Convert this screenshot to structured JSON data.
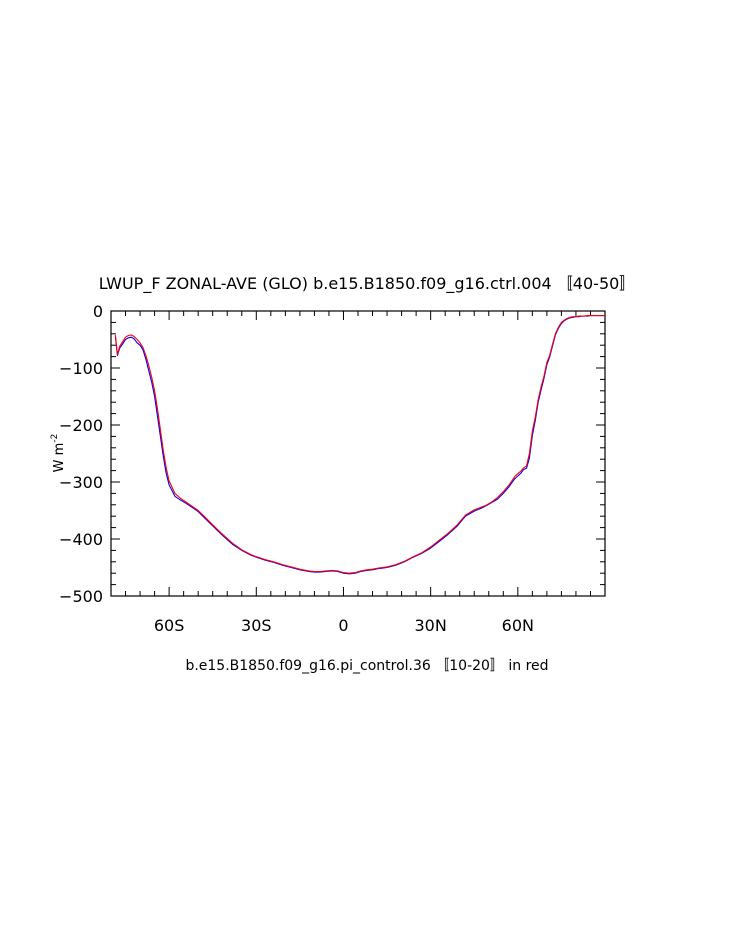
{
  "chart_data": {
    "type": "line",
    "title": "LWUP_F ZONAL-AVE (GLO) b.e15.B1850.f09_g16.ctrl.004 〚40-50〛",
    "ylabel_main": "W m",
    "ylabel_sup": "-2",
    "xlabel": "b.e15.B1850.f09_g16.pi_control.36 〚10-20〛 in red",
    "xlim": [
      -80,
      90
    ],
    "ylim": [
      -500,
      0
    ],
    "x_ticks": [
      {
        "value": -60,
        "label": "60S"
      },
      {
        "value": -30,
        "label": "30S"
      },
      {
        "value": 0,
        "label": "0"
      },
      {
        "value": 30,
        "label": "30N"
      },
      {
        "value": 60,
        "label": "60N"
      }
    ],
    "y_ticks": [
      {
        "value": 0,
        "label": "0"
      },
      {
        "value": -100,
        "label": "−100"
      },
      {
        "value": -200,
        "label": "−200"
      },
      {
        "value": -300,
        "label": "−300"
      },
      {
        "value": -400,
        "label": "−400"
      },
      {
        "value": -500,
        "label": "−500"
      }
    ],
    "series": [
      {
        "color": "#0000ff",
        "x": [
          -78.5,
          -77.8,
          -77,
          -76,
          -75,
          -74,
          -73,
          -72,
          -71,
          -70,
          -69,
          -68,
          -67,
          -66,
          -65,
          -64,
          -63,
          -62,
          -61,
          -60,
          -58,
          -56,
          -54,
          -52,
          -50,
          -48,
          -45,
          -42,
          -40,
          -38,
          -35,
          -32,
          -30,
          -27,
          -24,
          -21,
          -18,
          -15,
          -12,
          -10,
          -8,
          -6,
          -4,
          -2,
          0,
          2,
          4,
          6,
          8,
          10,
          12,
          15,
          18,
          21,
          24,
          27,
          30,
          33,
          36,
          39,
          42,
          45,
          47,
          49,
          51,
          53,
          55,
          57,
          59,
          61,
          62,
          63,
          64,
          65,
          66,
          67,
          68,
          69,
          70,
          71,
          72,
          73,
          74,
          75,
          76,
          77,
          78,
          79,
          80,
          81,
          82,
          83,
          84,
          85,
          86,
          87,
          88,
          89,
          90
        ],
        "y": [
          -45,
          -78,
          -65,
          -58,
          -50,
          -47,
          -46,
          -49,
          -56,
          -60,
          -68,
          -85,
          -105,
          -125,
          -150,
          -185,
          -220,
          -255,
          -285,
          -305,
          -325,
          -332,
          -338,
          -345,
          -352,
          -362,
          -377,
          -392,
          -401,
          -410,
          -420,
          -428,
          -432,
          -437,
          -441,
          -446,
          -450,
          -454,
          -457,
          -458,
          -458,
          -457,
          -456,
          -457,
          -460,
          -461,
          -460,
          -457,
          -455,
          -454,
          -452,
          -450,
          -446,
          -440,
          -432,
          -425,
          -416,
          -404,
          -392,
          -378,
          -360,
          -351,
          -347,
          -342,
          -336,
          -330,
          -320,
          -308,
          -294,
          -285,
          -278,
          -276,
          -258,
          -218,
          -192,
          -160,
          -138,
          -118,
          -94,
          -80,
          -60,
          -41,
          -30,
          -22,
          -17,
          -14,
          -12,
          -11,
          -10,
          -10,
          -9,
          -9,
          -9,
          -8,
          -8,
          -8,
          -8,
          -8,
          -8
        ],
        "note": "control (blue)"
      },
      {
        "color": "#ff0000",
        "x": [
          -78.5,
          -77.8,
          -77,
          -76,
          -75,
          -74,
          -73,
          -72,
          -71,
          -70,
          -69,
          -68,
          -67,
          -66,
          -65,
          -64,
          -63,
          -62,
          -61,
          -60,
          -58,
          -56,
          -54,
          -52,
          -50,
          -48,
          -45,
          -42,
          -40,
          -38,
          -35,
          -32,
          -30,
          -27,
          -24,
          -21,
          -18,
          -15,
          -12,
          -10,
          -8,
          -6,
          -4,
          -2,
          0,
          2,
          4,
          6,
          8,
          10,
          12,
          15,
          18,
          21,
          24,
          27,
          30,
          33,
          36,
          39,
          42,
          45,
          47,
          49,
          51,
          53,
          55,
          57,
          59,
          61,
          62,
          63,
          64,
          65,
          66,
          67,
          68,
          69,
          70,
          71,
          72,
          73,
          74,
          75,
          76,
          77,
          78,
          79,
          80,
          81,
          82,
          83,
          84,
          85,
          86,
          87,
          88,
          89,
          90
        ],
        "y": [
          -42,
          -76,
          -62,
          -54,
          -46,
          -43,
          -42,
          -45,
          -50,
          -56,
          -64,
          -78,
          -96,
          -116,
          -140,
          -172,
          -208,
          -245,
          -275,
          -298,
          -320,
          -329,
          -336,
          -343,
          -350,
          -360,
          -375,
          -390,
          -399,
          -408,
          -419,
          -427,
          -431,
          -436,
          -440,
          -445,
          -449,
          -453,
          -456,
          -457,
          -457,
          -456,
          -455,
          -456,
          -459,
          -460,
          -459,
          -456,
          -454,
          -453,
          -451,
          -449,
          -445,
          -439,
          -431,
          -424,
          -414,
          -402,
          -390,
          -376,
          -358,
          -349,
          -345,
          -341,
          -335,
          -327,
          -317,
          -305,
          -290,
          -281,
          -275,
          -272,
          -250,
          -210,
          -186,
          -155,
          -133,
          -114,
          -90,
          -77,
          -57,
          -39,
          -28,
          -20,
          -16,
          -13,
          -11,
          -10,
          -10,
          -9,
          -9,
          -9,
          -8,
          -8,
          -8,
          -8,
          -8,
          -8,
          -8
        ],
        "note": "pi_control (red)"
      }
    ]
  }
}
